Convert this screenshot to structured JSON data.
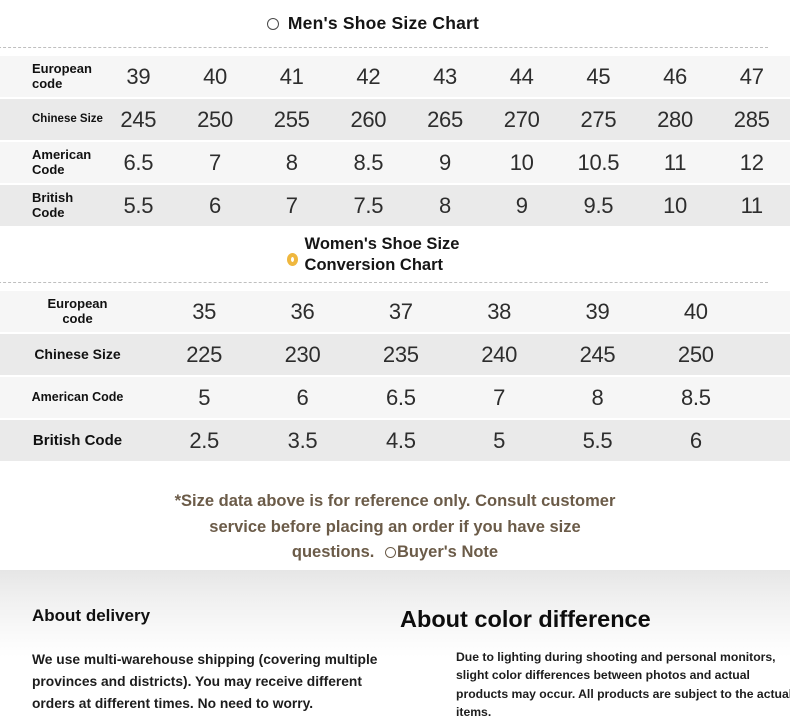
{
  "mens_chart": {
    "title": "Men's Shoe Size Chart",
    "rows": [
      {
        "label": "European code",
        "values": [
          "39",
          "40",
          "41",
          "42",
          "43",
          "44",
          "45",
          "46",
          "47"
        ]
      },
      {
        "label": "Chinese Size",
        "values": [
          "245",
          "250",
          "255",
          "260",
          "265",
          "270",
          "275",
          "280",
          "285"
        ]
      },
      {
        "label": "American Code",
        "values": [
          "6.5",
          "7",
          "8",
          "8.5",
          "9",
          "10",
          "10.5",
          "11",
          "12"
        ]
      },
      {
        "label": "British Code",
        "values": [
          "5.5",
          "6",
          "7",
          "7.5",
          "8",
          "9",
          "9.5",
          "10",
          "11"
        ]
      }
    ]
  },
  "womens_chart": {
    "title_line1": "Women's Shoe Size",
    "title_line2": "Conversion Chart",
    "rows": [
      {
        "label": "European code",
        "values": [
          "35",
          "36",
          "37",
          "38",
          "39",
          "40"
        ]
      },
      {
        "label": "Chinese Size",
        "values": [
          "225",
          "230",
          "235",
          "240",
          "245",
          "250"
        ]
      },
      {
        "label": "American Code",
        "values": [
          "5",
          "6",
          "6.5",
          "7",
          "8",
          "8.5"
        ]
      },
      {
        "label": "British Code",
        "values": [
          "2.5",
          "3.5",
          "4.5",
          "5",
          "5.5",
          "6"
        ]
      }
    ]
  },
  "note": {
    "text": "*Size data above is for reference only. Consult customer service before placing an order if you have size questions.",
    "suffix": "Buyer's Note"
  },
  "footer": {
    "delivery_title": "About delivery",
    "delivery_text": "We use multi-warehouse shipping (covering multiple provinces and districts). You may receive different orders at different times. No need to worry.",
    "color_title": "About color difference",
    "color_text": "Due to lighting during shooting and personal monitors, slight color differences between photos and actual products may occur. All products are subject to the actual items."
  },
  "icons": {
    "mens_bullet": "circle-outline-icon",
    "womens_bullet": "gold-ring-icon",
    "note_bullet": "circle-outline-icon"
  },
  "colors": {
    "accent_ring_gold": "#efb73e",
    "note_text_brown": "#6b5b48",
    "row_light": "#f6f6f6",
    "row_dark": "#eaeaea",
    "divider_dashed": "#bfbfbf"
  }
}
